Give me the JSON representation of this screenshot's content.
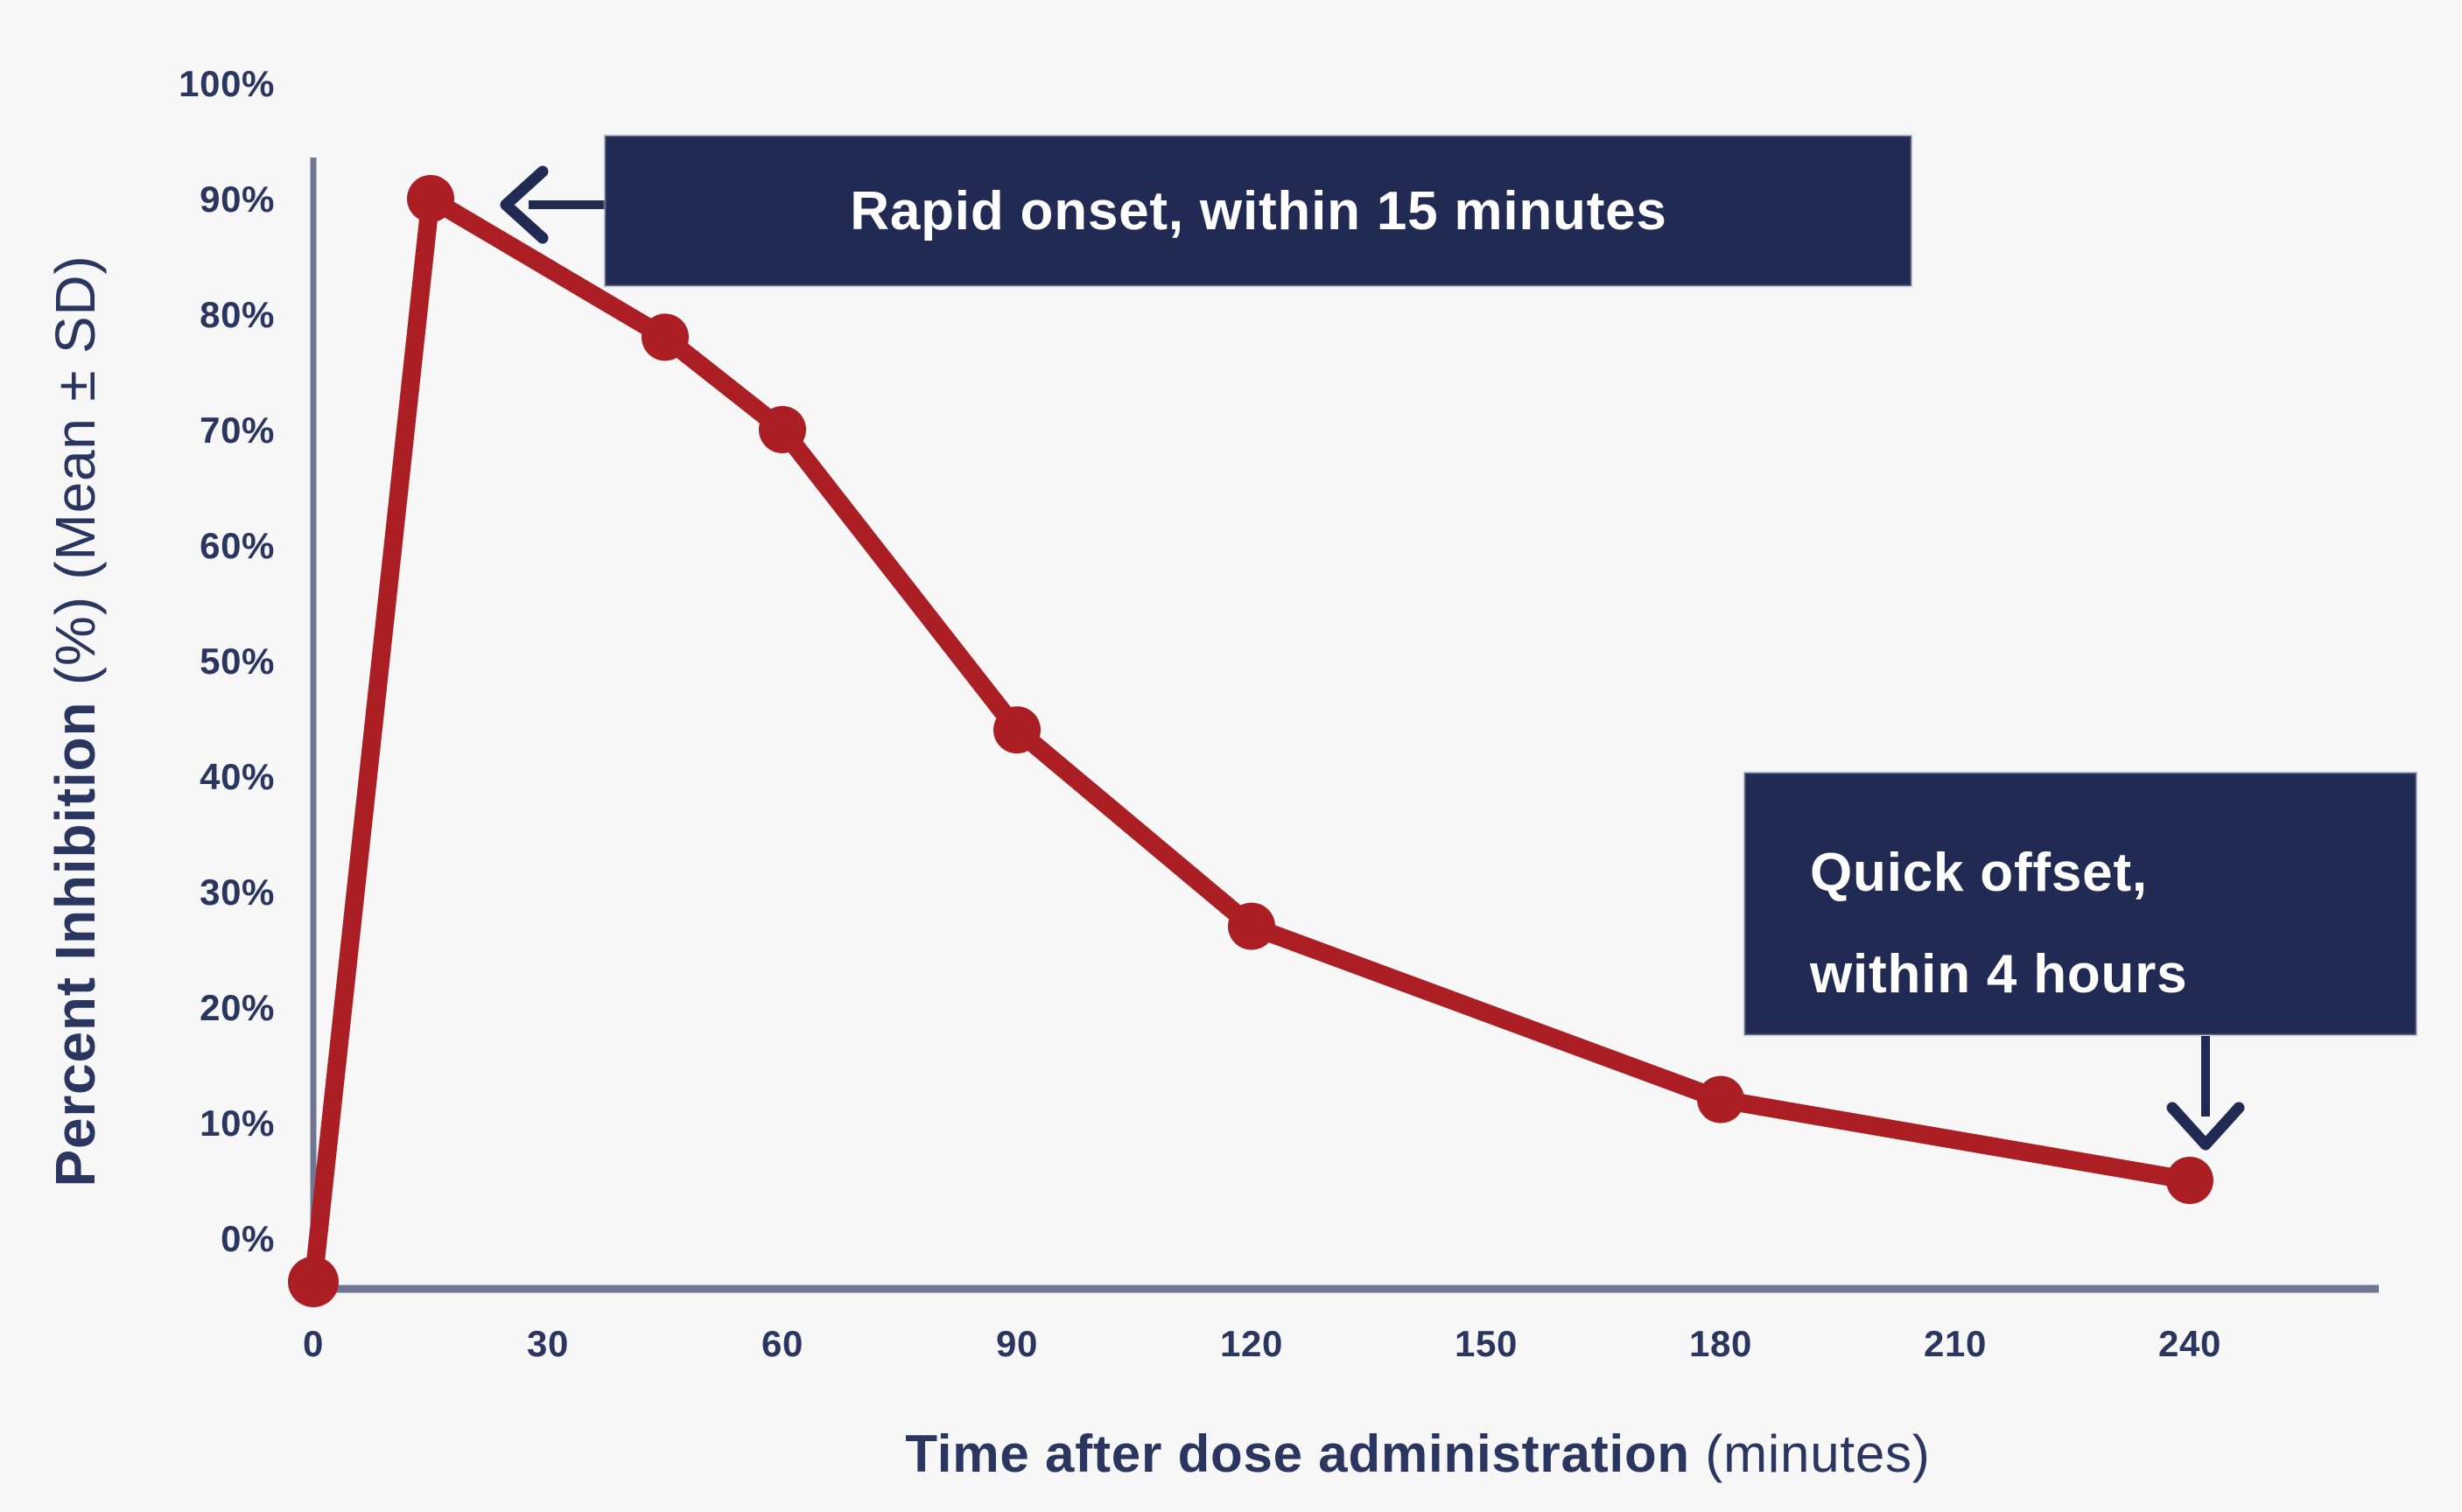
{
  "figure": {
    "background": "#f7f7f8",
    "navy": "#212a52",
    "red": "#ab1f24",
    "axis_color": "#6f7795",
    "label_color": "#2a3560"
  },
  "chart_data": {
    "type": "line",
    "title": "",
    "x": [
      0,
      15,
      45,
      60,
      90,
      120,
      180,
      240
    ],
    "series": [
      {
        "name": "Percent Inhibition (Mean)",
        "color": "#ab1f24",
        "values": [
          0,
          90,
          78,
          70,
          44,
          27,
          12,
          5
        ]
      }
    ],
    "x_ticks": [
      0,
      30,
      60,
      90,
      120,
      150,
      180,
      210,
      240
    ],
    "y_ticks": [
      0,
      10,
      20,
      30,
      40,
      50,
      60,
      70,
      80,
      90,
      100
    ],
    "y_tick_suffix": "%",
    "xlim": [
      0,
      264
    ],
    "ylim": [
      -4.5,
      100
    ],
    "grid": false,
    "legend": "none",
    "xlabel": "Time after dose administration (minutes)",
    "xlabel_bold_part": "Time after dose administration",
    "xlabel_regular_part": " (minutes)",
    "ylabel": "Percent Inhibition (%) (Mean ± SD)",
    "ylabel_bold_part": "Percent Inhibition ",
    "ylabel_regular_part": "(%) (Mean ± SD)",
    "baseline_point_drawn_on_axis": true,
    "annotations": [
      {
        "id": "rapid-onset",
        "text": "Rapid onset, within 15 minutes",
        "arrow": "left",
        "points_to": {
          "x": 15,
          "y": 90
        }
      },
      {
        "id": "quick-offset",
        "text": "Quick offset, within 4 hours",
        "lines": [
          "Quick offset,",
          "within 4 hours"
        ],
        "arrow": "down",
        "points_to": {
          "x": 240,
          "y": 5
        }
      }
    ]
  }
}
